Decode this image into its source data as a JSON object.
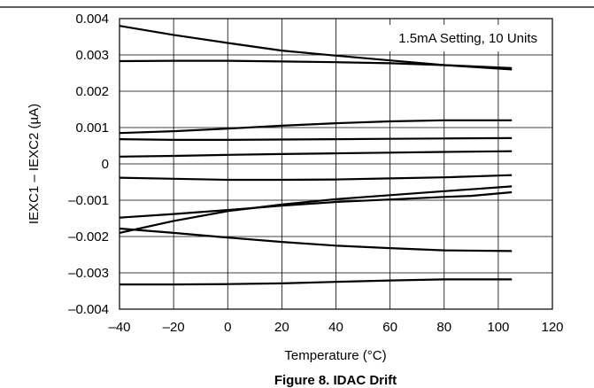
{
  "figure_caption": "Figure 8. IDAC Drift",
  "chart_data": {
    "type": "line",
    "title": "",
    "annotation": "1.5mA Setting, 10 Units",
    "xlabel": "Temperature (°C)",
    "ylabel": "IEXC1 – IEXC2 (µA)",
    "xlim": [
      -40,
      120
    ],
    "ylim": [
      -0.004,
      0.004
    ],
    "x_ticks": [
      "–40",
      "–20",
      "0",
      "20",
      "40",
      "60",
      "80",
      "100",
      "120"
    ],
    "y_ticks": [
      "0.004",
      "0.003",
      "0.002",
      "0.001",
      "0",
      "–0.001",
      "–0.002",
      "–0.003",
      "–0.004"
    ],
    "grid": true,
    "series": [
      {
        "x": [
          -40,
          -20,
          0,
          20,
          40,
          60,
          80,
          105
        ],
        "y": [
          0.0038,
          0.00355,
          0.00333,
          0.00312,
          0.00298,
          0.00285,
          0.00272,
          0.0026
        ]
      },
      {
        "x": [
          -40,
          -20,
          0,
          20,
          40,
          60,
          80,
          105
        ],
        "y": [
          0.00283,
          0.00284,
          0.00284,
          0.00282,
          0.0028,
          0.00277,
          0.00272,
          0.00264
        ]
      },
      {
        "x": [
          -40,
          -20,
          0,
          20,
          40,
          60,
          80,
          105
        ],
        "y": [
          0.00085,
          0.0009,
          0.00097,
          0.00105,
          0.00112,
          0.00117,
          0.0012,
          0.0012
        ]
      },
      {
        "x": [
          -40,
          -20,
          0,
          20,
          40,
          60,
          80,
          105
        ],
        "y": [
          0.00068,
          0.00066,
          0.00066,
          0.00067,
          0.00068,
          0.00069,
          0.0007,
          0.00071
        ]
      },
      {
        "x": [
          -40,
          -20,
          0,
          20,
          40,
          60,
          80,
          105
        ],
        "y": [
          0.0002,
          0.00022,
          0.00025,
          0.00027,
          0.00029,
          0.00031,
          0.00033,
          0.00035
        ]
      },
      {
        "x": [
          -40,
          -20,
          0,
          20,
          40,
          60,
          80,
          105
        ],
        "y": [
          -0.00038,
          -0.00041,
          -0.00044,
          -0.00044,
          -0.00043,
          -0.0004,
          -0.00037,
          -0.00031
        ]
      },
      {
        "x": [
          -40,
          -20,
          0,
          20,
          40,
          60,
          80,
          90,
          105
        ],
        "y": [
          -0.00148,
          -0.00138,
          -0.00127,
          -0.00115,
          -0.00105,
          -0.00098,
          -0.00091,
          -0.00088,
          -0.00078
        ]
      },
      {
        "x": [
          -40,
          -20,
          0,
          20,
          40,
          60,
          80,
          90,
          105
        ],
        "y": [
          -0.0019,
          -0.00157,
          -0.0013,
          -0.00112,
          -0.00097,
          -0.00086,
          -0.00075,
          -0.0007,
          -0.00062
        ]
      },
      {
        "x": [
          -40,
          -20,
          0,
          20,
          40,
          60,
          80,
          105
        ],
        "y": [
          -0.00178,
          -0.0019,
          -0.00203,
          -0.00215,
          -0.00225,
          -0.00232,
          -0.00238,
          -0.0024
        ]
      },
      {
        "x": [
          -40,
          -20,
          0,
          20,
          40,
          60,
          80,
          105
        ],
        "y": [
          -0.00332,
          -0.00332,
          -0.00331,
          -0.00329,
          -0.00325,
          -0.00321,
          -0.00318,
          -0.00318
        ]
      }
    ]
  }
}
